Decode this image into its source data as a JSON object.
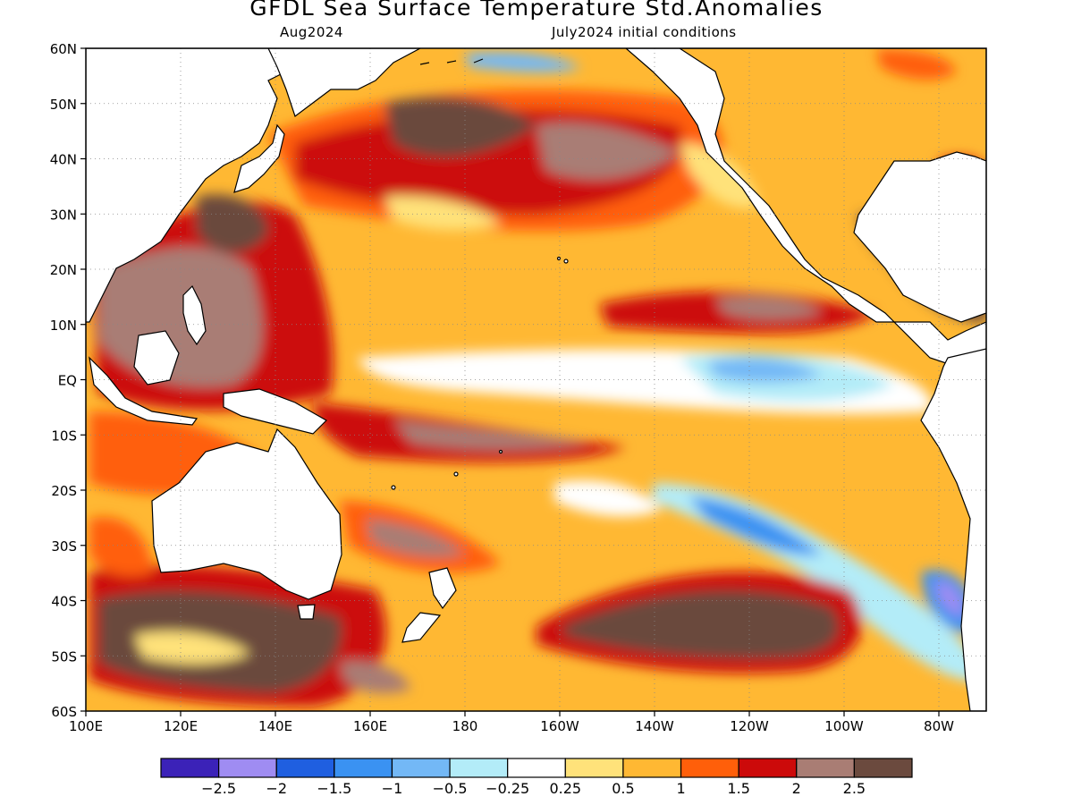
{
  "header": {
    "title": "GFDL Sea Surface Temperature Std.Anomalies",
    "subtitle_left": "Aug2024",
    "subtitle_right": "July2024 initial conditions"
  },
  "axes": {
    "lat_labels": [
      "60N",
      "50N",
      "40N",
      "30N",
      "20N",
      "10N",
      "EQ",
      "10S",
      "20S",
      "30S",
      "40S",
      "50S",
      "60S"
    ],
    "lat_values": [
      60,
      50,
      40,
      30,
      20,
      10,
      0,
      -10,
      -20,
      -30,
      -40,
      -50,
      -60
    ],
    "lon_labels": [
      "100E",
      "120E",
      "140E",
      "160E",
      "180",
      "160W",
      "140W",
      "120W",
      "100W",
      "80W"
    ],
    "lon_values": [
      100,
      120,
      140,
      160,
      180,
      200,
      220,
      240,
      260,
      280
    ],
    "lon_range": [
      100,
      290
    ],
    "lat_range": [
      -60,
      60
    ],
    "grid": "dotted"
  },
  "colorbar": {
    "labels": [
      "-2.5",
      "-2",
      "-1.5",
      "-1",
      "-0.5",
      "-0.25",
      "0.25",
      "0.5",
      "1",
      "1.5",
      "2",
      "2.5"
    ],
    "colors": [
      "#3b22b8",
      "#9f8cf2",
      "#1f5fe0",
      "#3a92f2",
      "#73b8f6",
      "#b3ecf8",
      "#ffffff",
      "#ffe27a",
      "#ffb833",
      "#ff5f0a",
      "#cc0a0a",
      "#a97d74",
      "#6b4a3e"
    ]
  },
  "land_color": "#ffffff",
  "coast_color": "#000000"
}
